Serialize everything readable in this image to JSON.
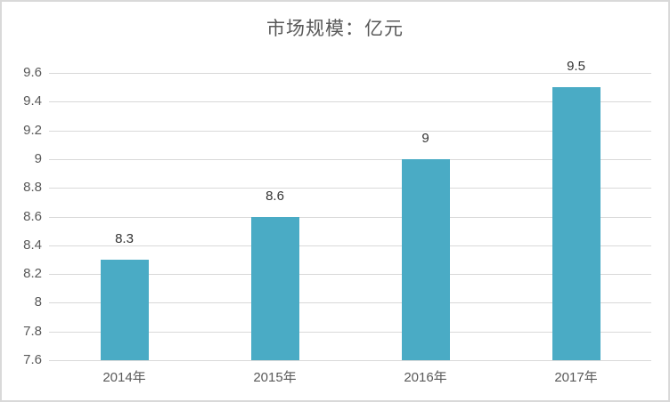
{
  "chart_data": {
    "type": "bar",
    "title": "市场规模：亿元",
    "categories": [
      "2014年",
      "2015年",
      "2016年",
      "2017年"
    ],
    "values": [
      8.3,
      8.6,
      9,
      9.5
    ],
    "data_labels": [
      "8.3",
      "8.6",
      "9",
      "9.5"
    ],
    "ylim": [
      7.6,
      9.6
    ],
    "ytick_step": 0.2,
    "ytick_labels": [
      "9.6",
      "9.4",
      "9.2",
      "9",
      "8.8",
      "8.6",
      "8.4",
      "8.2",
      "8",
      "7.8",
      "7.6"
    ],
    "grid": true,
    "legend_position": "none",
    "xlabel": "",
    "ylabel": "",
    "colors": {
      "bar_fill": "#4AABC5",
      "gridline": "#d9d9d9",
      "title_text": "#595959",
      "axis_tick_text": "#595959",
      "data_label_text": "#333333",
      "window_border": "#d9d9d9",
      "background": "#ffffff"
    }
  }
}
